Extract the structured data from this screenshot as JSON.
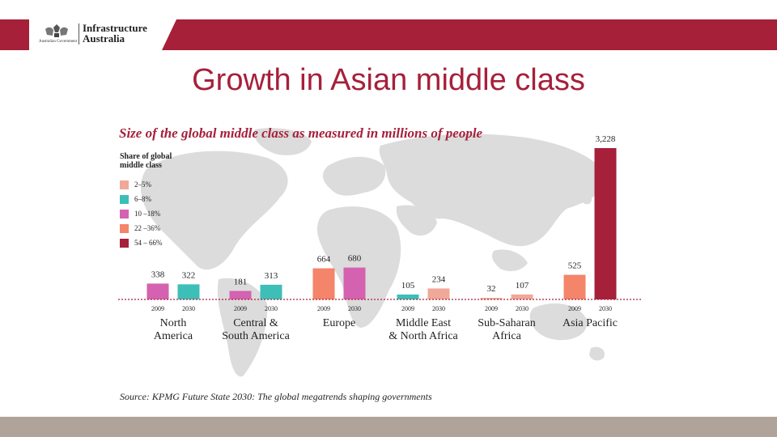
{
  "header": {
    "org_line1": "Infrastructure",
    "org_line2": "Australia",
    "gov_label": "Australian Government",
    "accent_color": "#a6203a"
  },
  "slide": {
    "title": "Growth in Asian middle class",
    "source": "Source: KPMG Future State 2030: The global megatrends shaping governments"
  },
  "chart_data": {
    "type": "bar",
    "title": "Size of the global middle class as measured in millions of people",
    "legend_title": "Share of global middle class",
    "legend": [
      {
        "label": "2–5%",
        "color": "#f0a898"
      },
      {
        "label": "6–8%",
        "color": "#3dbfb8"
      },
      {
        "label": "10 –18%",
        "color": "#d462b0"
      },
      {
        "label": "22 –36%",
        "color": "#f4846a"
      },
      {
        "label": "54 – 66%",
        "color": "#a6203a"
      }
    ],
    "ylim": [
      0,
      3228
    ],
    "groups": [
      {
        "region": [
          "North",
          "America"
        ],
        "bars": [
          {
            "year": "2009",
            "value": 338,
            "label": "338",
            "share": "10 –18%"
          },
          {
            "year": "2030",
            "value": 322,
            "label": "322",
            "share": "6–8%"
          }
        ]
      },
      {
        "region": [
          "Central &",
          "South America"
        ],
        "bars": [
          {
            "year": "2009",
            "value": 181,
            "label": "181",
            "share": "10 –18%"
          },
          {
            "year": "2030",
            "value": 313,
            "label": "313",
            "share": "6–8%"
          }
        ]
      },
      {
        "region": [
          "Europe"
        ],
        "bars": [
          {
            "year": "2009",
            "value": 664,
            "label": "664",
            "share": "22 –36%"
          },
          {
            "year": "2030",
            "value": 680,
            "label": "680",
            "share": "10 –18%"
          }
        ]
      },
      {
        "region": [
          "Middle East",
          "& North Africa"
        ],
        "bars": [
          {
            "year": "2009",
            "value": 105,
            "label": "105",
            "share": "6–8%"
          },
          {
            "year": "2030",
            "value": 234,
            "label": "234",
            "share": "2–5%"
          }
        ]
      },
      {
        "region": [
          "Sub-Saharan",
          "Africa"
        ],
        "bars": [
          {
            "year": "2009",
            "value": 32,
            "label": "32",
            "share": "2–5%"
          },
          {
            "year": "2030",
            "value": 107,
            "label": "107",
            "share": "2–5%"
          }
        ]
      },
      {
        "region": [
          "Asia Pacific"
        ],
        "bars": [
          {
            "year": "2009",
            "value": 525,
            "label": "525",
            "share": "22 –36%"
          },
          {
            "year": "2030",
            "value": 3228,
            "label": "3,228",
            "share": "54 – 66%"
          }
        ]
      }
    ]
  }
}
